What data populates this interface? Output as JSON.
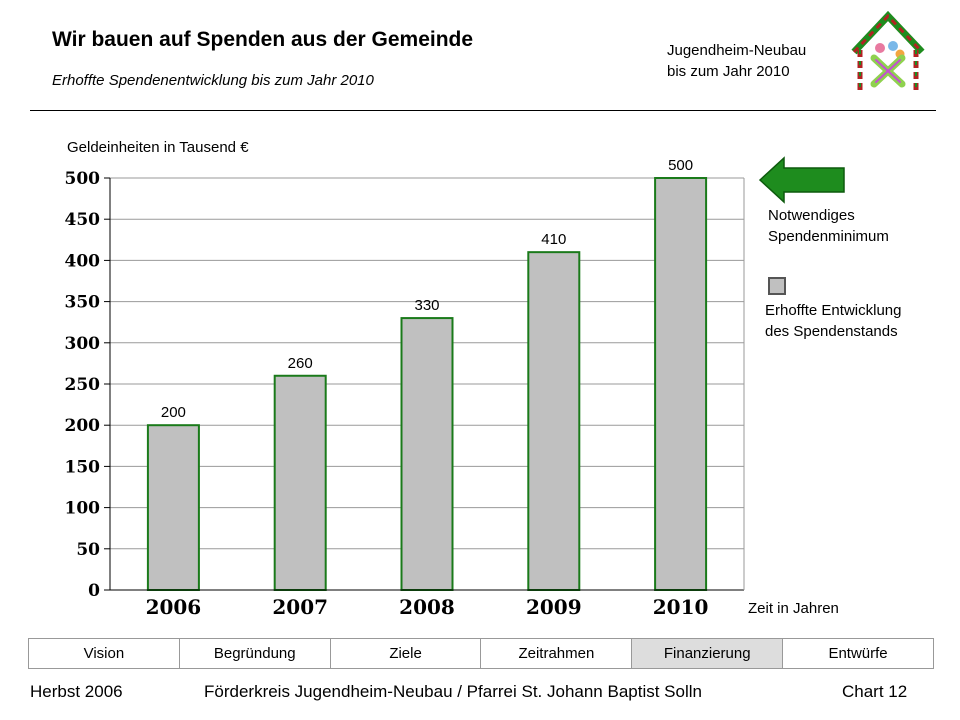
{
  "header": {
    "title": "Wir bauen auf Spenden aus der Gemeinde",
    "subtitle": "Erhoffte Spendenentwicklung bis zum Jahr 2010",
    "project_line1": "Jugendheim-Neubau",
    "project_line2": "bis zum Jahr 2010"
  },
  "chart_data": {
    "type": "bar",
    "title": "",
    "ylabel": "Geldeinheiten in Tausend €",
    "xlabel": "Zeit in Jahren",
    "categories": [
      "2006",
      "2007",
      "2008",
      "2009",
      "2010"
    ],
    "series": [
      {
        "name": "Erhoffte Entwicklung des Spendenstands",
        "values": [
          200,
          260,
          330,
          410,
          500
        ]
      }
    ],
    "ylim": [
      0,
      500
    ],
    "yticks": [
      0,
      50,
      100,
      150,
      200,
      250,
      300,
      350,
      400,
      450,
      500
    ],
    "grid": true,
    "bar_color": "#c0c0c0",
    "bar_edge_color": "#1a7a1a",
    "legend_placement": "right"
  },
  "legend": {
    "minimum_line1": "Notwendiges",
    "minimum_line2": "Spendenminimum",
    "hope_line1": "Erhoffte Entwicklung",
    "hope_line2": "des Spendenstands",
    "arrow_color": "#1e8c1e"
  },
  "nav": {
    "tabs": [
      {
        "label": "Vision",
        "active": false
      },
      {
        "label": "Begründung",
        "active": false
      },
      {
        "label": "Ziele",
        "active": false
      },
      {
        "label": "Zeitrahmen",
        "active": false
      },
      {
        "label": "Finanzierung",
        "active": true
      },
      {
        "label": "Entwürfe",
        "active": false
      }
    ]
  },
  "footer": {
    "season": "Herbst 2006",
    "organization": "Förderkreis Jugendheim-Neubau / Pfarrei St. Johann Baptist Solln",
    "chart_number": "Chart 12"
  },
  "icons": {
    "logo": "house-logo-icon",
    "arrow": "arrow-left-icon"
  }
}
